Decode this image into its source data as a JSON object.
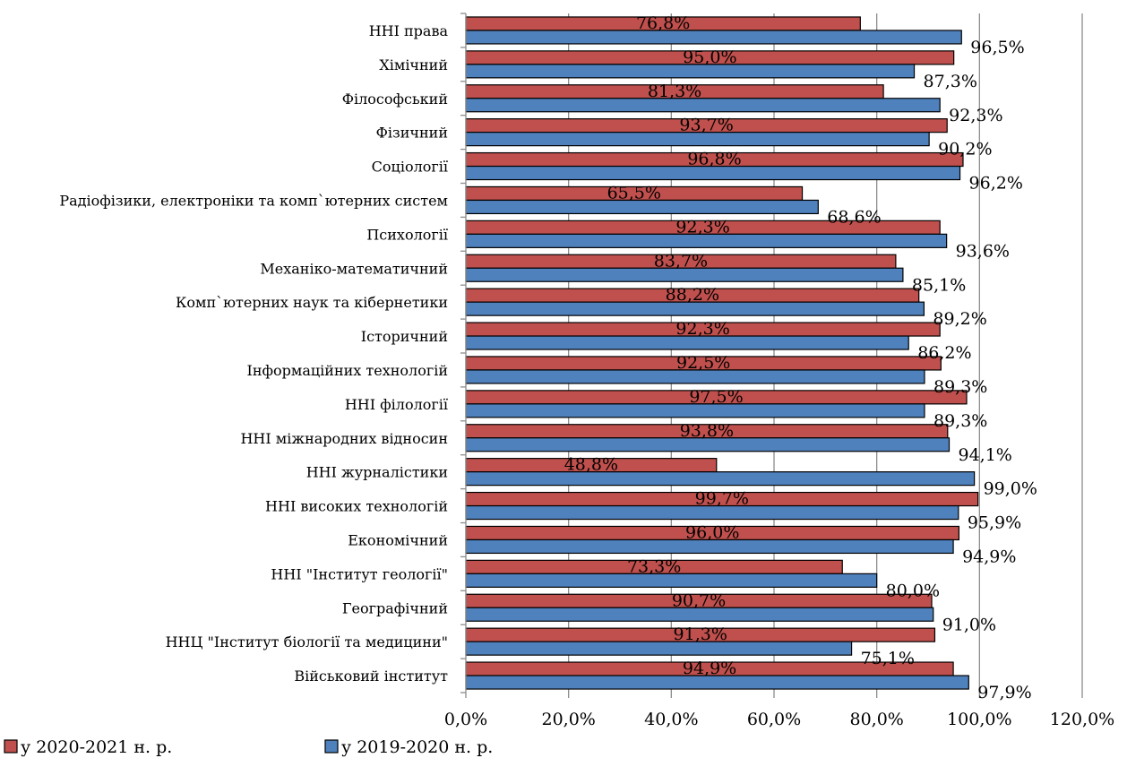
{
  "chart_data": {
    "type": "bar",
    "orientation": "horizontal",
    "categories": [
      "ННІ права",
      "Хімічний",
      "Філософський",
      "Фізичний",
      "Соціології",
      "Радіофізики, електроніки та комп`ютерних систем",
      "Психології",
      "Механіко-математичний",
      "Комп`ютерних наук та кібернетики",
      "Історичний",
      "Інформаційних технологій",
      "ННІ філології",
      "ННІ міжнародних відносин",
      "ННІ журналістики",
      "ННІ високих технологій",
      "Економічний",
      "ННІ \"Інститут геології\"",
      "Географічний",
      "ННЦ \"Інститут біології та медицини\"",
      "Військовий інститут"
    ],
    "series": [
      {
        "name": "у 2020-2021 н. р.",
        "color": "#c0504d",
        "values": [
          76.8,
          95.0,
          81.3,
          93.7,
          96.8,
          65.5,
          92.3,
          83.7,
          88.2,
          92.3,
          92.5,
          97.5,
          93.8,
          48.8,
          99.7,
          96.0,
          73.3,
          90.7,
          91.3,
          94.9
        ],
        "labels": [
          "76,8%",
          "95,0%",
          "81,3%",
          "93,7%",
          "96,8%",
          "65,5%",
          "92,3%",
          "83,7%",
          "88,2%",
          "92,3%",
          "92,5%",
          "97,5%",
          "93,8%",
          "48,8%",
          "99,7%",
          "96,0%",
          "73,3%",
          "90,7%",
          "91,3%",
          "94,9%"
        ]
      },
      {
        "name": "у 2019-2020 н. р.",
        "color": "#4f81bd",
        "values": [
          96.5,
          87.3,
          92.3,
          90.2,
          96.2,
          68.6,
          93.6,
          85.1,
          89.2,
          86.2,
          89.3,
          89.3,
          94.1,
          99.0,
          95.9,
          94.9,
          80.0,
          91.0,
          75.1,
          97.9
        ],
        "labels": [
          "96,5%",
          "87,3%",
          "92,3%",
          "90,2%",
          "96,2%",
          "68,6%",
          "93,6%",
          "85,1%",
          "89,2%",
          "86,2%",
          "89,3%",
          "89,3%",
          "94,1%",
          "99,0%",
          "95,9%",
          "94,9%",
          "80,0%",
          "91,0%",
          "75,1%",
          "97,9%"
        ]
      }
    ],
    "xlim": [
      0,
      120
    ],
    "xticks": [
      "0,0%",
      "20,0%",
      "40,0%",
      "60,0%",
      "80,0%",
      "100,0%",
      "120,0%"
    ],
    "grid": true,
    "legend_position": "bottom-left"
  }
}
